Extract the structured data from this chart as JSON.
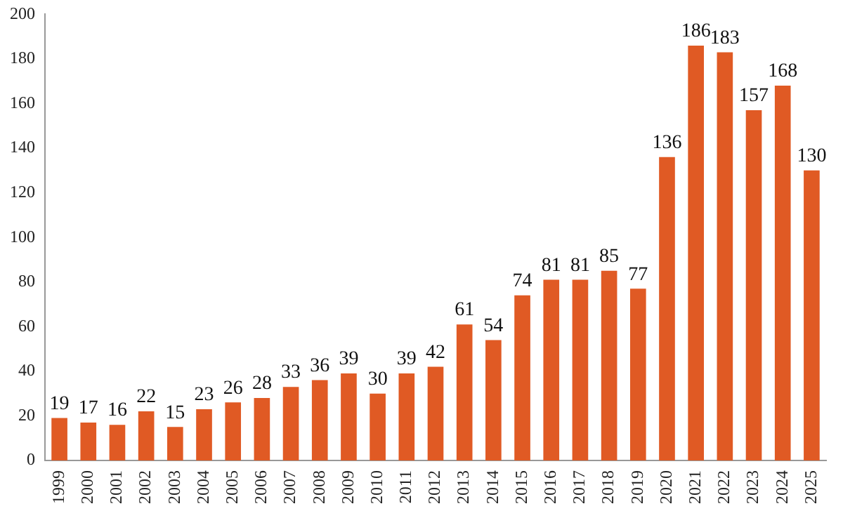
{
  "chart_data": {
    "type": "bar",
    "categories": [
      "1999",
      "2000",
      "2001",
      "2002",
      "2003",
      "2004",
      "2005",
      "2006",
      "2007",
      "2008",
      "2009",
      "2010",
      "2011",
      "2012",
      "2013",
      "2014",
      "2015",
      "2016",
      "2017",
      "2018",
      "2019",
      "2020",
      "2021",
      "2022",
      "2023",
      "2024",
      "2025"
    ],
    "values": [
      19,
      17,
      16,
      22,
      15,
      23,
      26,
      28,
      33,
      36,
      39,
      30,
      39,
      42,
      61,
      54,
      74,
      81,
      81,
      85,
      77,
      136,
      186,
      183,
      157,
      168,
      130
    ],
    "color": "#e05a24",
    "ylim": [
      0,
      200
    ],
    "yticks": [
      0,
      20,
      40,
      60,
      80,
      100,
      120,
      140,
      160,
      180,
      200
    ],
    "grid": false,
    "data_labels": true
  }
}
